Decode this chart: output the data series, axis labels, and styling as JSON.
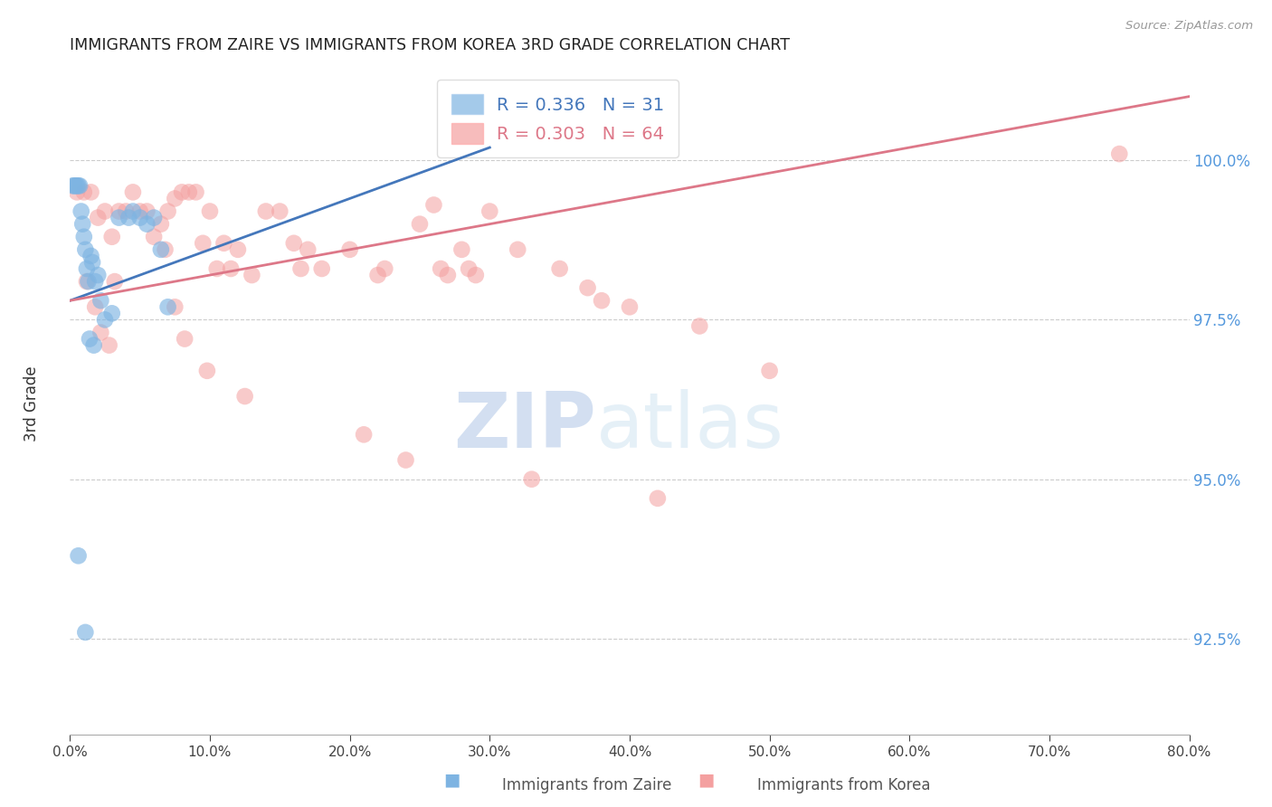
{
  "title": "IMMIGRANTS FROM ZAIRE VS IMMIGRANTS FROM KOREA 3RD GRADE CORRELATION CHART",
  "source": "Source: ZipAtlas.com",
  "ylabel": "3rd Grade",
  "watermark_zip": "ZIP",
  "watermark_atlas": "atlas",
  "xlim": [
    0.0,
    80.0
  ],
  "ylim": [
    91.0,
    101.5
  ],
  "yticks": [
    92.5,
    95.0,
    97.5,
    100.0
  ],
  "xticks": [
    0.0,
    10.0,
    20.0,
    30.0,
    40.0,
    50.0,
    60.0,
    70.0,
    80.0
  ],
  "blue_color": "#7EB4E2",
  "pink_color": "#F4A0A0",
  "blue_line_color": "#4477BB",
  "pink_line_color": "#DD7788",
  "legend_blue_R": "0.336",
  "legend_blue_N": "31",
  "legend_pink_R": "0.303",
  "legend_pink_N": "64",
  "blue_label": "Immigrants from Zaire",
  "pink_label": "Immigrants from Korea",
  "blue_x": [
    0.2,
    0.3,
    0.4,
    0.5,
    0.6,
    0.7,
    0.8,
    0.9,
    1.0,
    1.1,
    1.2,
    1.3,
    1.5,
    1.6,
    1.8,
    2.0,
    2.2,
    2.5,
    3.0,
    3.5,
    4.2,
    4.5,
    5.0,
    5.5,
    6.0,
    6.5,
    7.0,
    1.4,
    1.7,
    0.6,
    1.1
  ],
  "blue_y": [
    99.6,
    99.6,
    99.6,
    99.6,
    99.6,
    99.6,
    99.2,
    99.0,
    98.8,
    98.6,
    98.3,
    98.1,
    98.5,
    98.4,
    98.1,
    98.2,
    97.8,
    97.5,
    97.6,
    99.1,
    99.1,
    99.2,
    99.1,
    99.0,
    99.1,
    98.6,
    97.7,
    97.2,
    97.1,
    93.8,
    92.6
  ],
  "pink_x": [
    0.5,
    1.0,
    1.5,
    2.0,
    2.5,
    3.0,
    3.5,
    4.0,
    4.5,
    5.0,
    5.5,
    6.0,
    6.5,
    7.0,
    7.5,
    8.0,
    8.5,
    9.0,
    9.5,
    10.0,
    10.5,
    11.0,
    11.5,
    12.0,
    13.0,
    14.0,
    15.0,
    16.0,
    17.0,
    18.0,
    20.0,
    22.0,
    25.0,
    26.0,
    27.0,
    28.0,
    29.0,
    30.0,
    32.0,
    35.0,
    37.0,
    38.0,
    40.0,
    45.0,
    50.0,
    1.2,
    1.8,
    2.2,
    2.8,
    3.2,
    6.8,
    7.5,
    8.2,
    9.8,
    12.5,
    21.0,
    24.0,
    33.0,
    42.0,
    16.5,
    22.5,
    26.5,
    28.5,
    75.0
  ],
  "pink_y": [
    99.5,
    99.5,
    99.5,
    99.1,
    99.2,
    98.8,
    99.2,
    99.2,
    99.5,
    99.2,
    99.2,
    98.8,
    99.0,
    99.2,
    99.4,
    99.5,
    99.5,
    99.5,
    98.7,
    99.2,
    98.3,
    98.7,
    98.3,
    98.6,
    98.2,
    99.2,
    99.2,
    98.7,
    98.6,
    98.3,
    98.6,
    98.2,
    99.0,
    99.3,
    98.2,
    98.6,
    98.2,
    99.2,
    98.6,
    98.3,
    98.0,
    97.8,
    97.7,
    97.4,
    96.7,
    98.1,
    97.7,
    97.3,
    97.1,
    98.1,
    98.6,
    97.7,
    97.2,
    96.7,
    96.3,
    95.7,
    95.3,
    95.0,
    94.7,
    98.3,
    98.3,
    98.3,
    98.3,
    100.1
  ],
  "blue_trend_x": [
    0.0,
    30.0
  ],
  "blue_trend_y": [
    97.8,
    100.2
  ],
  "pink_trend_x": [
    0.0,
    80.0
  ],
  "pink_trend_y": [
    97.8,
    101.0
  ]
}
